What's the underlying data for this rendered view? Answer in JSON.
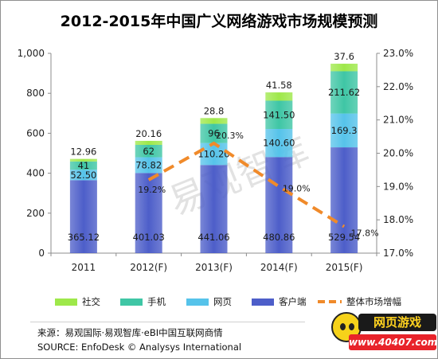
{
  "title": "2012-2015年中国广义网络游戏市场规模预测",
  "chart_data": {
    "type": "bar",
    "stacked": true,
    "categories": [
      "2011",
      "2012(F)",
      "2013(F)",
      "2014(F)",
      "2015(F)"
    ],
    "series": [
      {
        "name": "客户端",
        "values": [
          365.12,
          401.03,
          441.06,
          480.86,
          529.54
        ],
        "color": "#4d5ec9"
      },
      {
        "name": "网页",
        "values": [
          52.5,
          78.82,
          110.2,
          140.6,
          169.3
        ],
        "color": "#56c3ea"
      },
      {
        "name": "手机",
        "values": [
          41,
          62,
          96,
          141.5,
          211.62
        ],
        "color": "#3fc6a5"
      },
      {
        "name": "社交",
        "values": [
          12.96,
          20.16,
          28.8,
          41.58,
          37.6
        ],
        "color": "#9ee84a"
      }
    ],
    "value_labels": [
      [
        "365.12",
        "401.03",
        "441.06",
        "480.86",
        "529.54"
      ],
      [
        "52.50",
        "78.82",
        "110.20",
        "140.60",
        "169.3"
      ],
      [
        "41",
        "62",
        "96",
        "141.50",
        "211.62"
      ],
      [
        "12.96",
        "20.16",
        "28.8",
        "41.58",
        "37.6"
      ]
    ],
    "line": {
      "name": "整体市场增幅",
      "axis": "right",
      "color": "#f08a2a",
      "style": "dashed",
      "categories": [
        "2012(F)",
        "2013(F)",
        "2014(F)",
        "2015(F)"
      ],
      "values": [
        19.2,
        20.3,
        19.0,
        17.8
      ],
      "labels": [
        "19.2%",
        "20.3%",
        "19.0%",
        "17.8%"
      ]
    },
    "y_left": {
      "min": 0,
      "max": 1000,
      "ticks": [
        "0",
        "200",
        "400",
        "600",
        "800",
        "1,000"
      ]
    },
    "y_right": {
      "min": 17.0,
      "max": 23.0,
      "ticks": [
        "17.0%",
        "18.0%",
        "19.0%",
        "20.0%",
        "21.0%",
        "22.0%",
        "23.0%"
      ]
    },
    "legend": [
      "社交",
      "手机",
      "网页",
      "客户端",
      "整体市场增幅"
    ],
    "legend_placement": "bottom",
    "grid": false
  },
  "watermark": "易观智库",
  "footer": {
    "source_cn": "来源：易观国际·易观智库·eBI中国互联网商情",
    "source_en": "SOURCE: EnfoDesk © Analysys  International"
  },
  "logo": {
    "text": "网页游戏",
    "url": "www.40407.com"
  }
}
